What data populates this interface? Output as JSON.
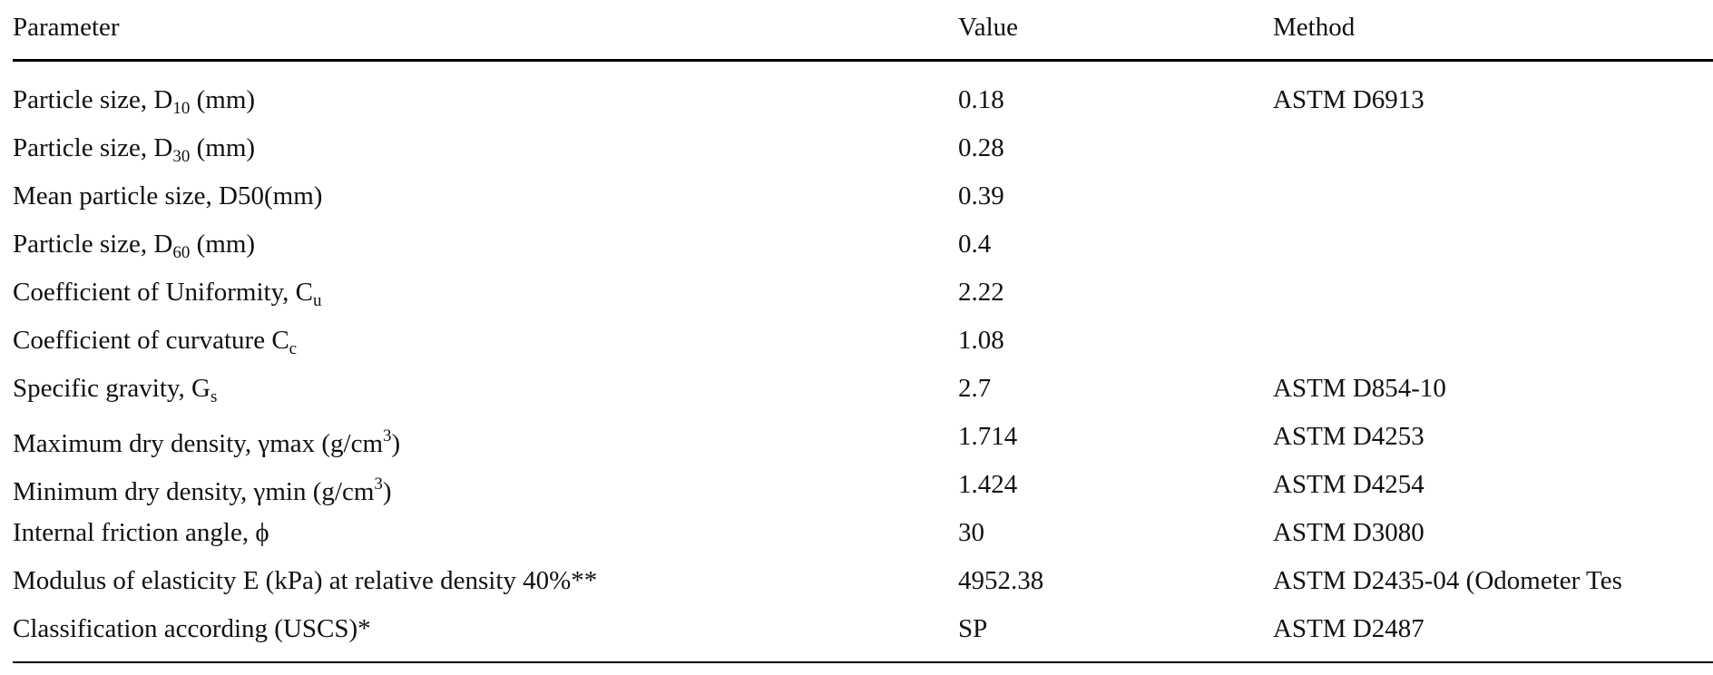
{
  "table": {
    "header": [
      "Parameter",
      "Value",
      "Method"
    ],
    "rows": [
      [
        [
          {
            "text": "Particle size, D"
          },
          {
            "sub": "10"
          },
          {
            "text": " (mm)"
          }
        ],
        "0.18",
        "ASTM D6913"
      ],
      [
        [
          {
            "text": "Particle size, D"
          },
          {
            "sub": "30"
          },
          {
            "text": " (mm)"
          }
        ],
        "0.28",
        null
      ],
      [
        [
          {
            "text": "Mean particle size, D50(mm)"
          }
        ],
        "0.39",
        null
      ],
      [
        [
          {
            "text": "Particle size, D"
          },
          {
            "sub": "60"
          },
          {
            "text": " (mm)"
          }
        ],
        "0.4",
        null
      ],
      [
        [
          {
            "text": "Coefficient of Uniformity, C"
          },
          {
            "sub": "u"
          }
        ],
        "2.22",
        null
      ],
      [
        [
          {
            "text": "Coefficient of curvature C"
          },
          {
            "sub": "c"
          }
        ],
        "1.08",
        null
      ],
      [
        [
          {
            "text": "Specific gravity, G"
          },
          {
            "sub": "s"
          }
        ],
        "2.7",
        "ASTM D854-10"
      ],
      [
        [
          {
            "text": "Maximum dry density, γmax (g/cm"
          },
          {
            "sup": "3"
          },
          {
            "text": ")"
          }
        ],
        "1.714",
        "ASTM D4253"
      ],
      [
        [
          {
            "text": "Minimum dry density, γmin (g/cm"
          },
          {
            "sup": "3"
          },
          {
            "text": ")"
          }
        ],
        "1.424",
        "ASTM D4254"
      ],
      [
        [
          {
            "text": "Internal friction angle, ϕ"
          }
        ],
        "30",
        "ASTM D3080"
      ],
      [
        [
          {
            "text": "Modulus of elasticity E (kPa) at relative density 40%**"
          }
        ],
        "4952.38",
        "ASTM D2435-04 (Odometer Tes"
      ],
      [
        [
          {
            "text": "Classification according (USCS)*"
          }
        ],
        "SP",
        "ASTM D2487"
      ]
    ]
  }
}
